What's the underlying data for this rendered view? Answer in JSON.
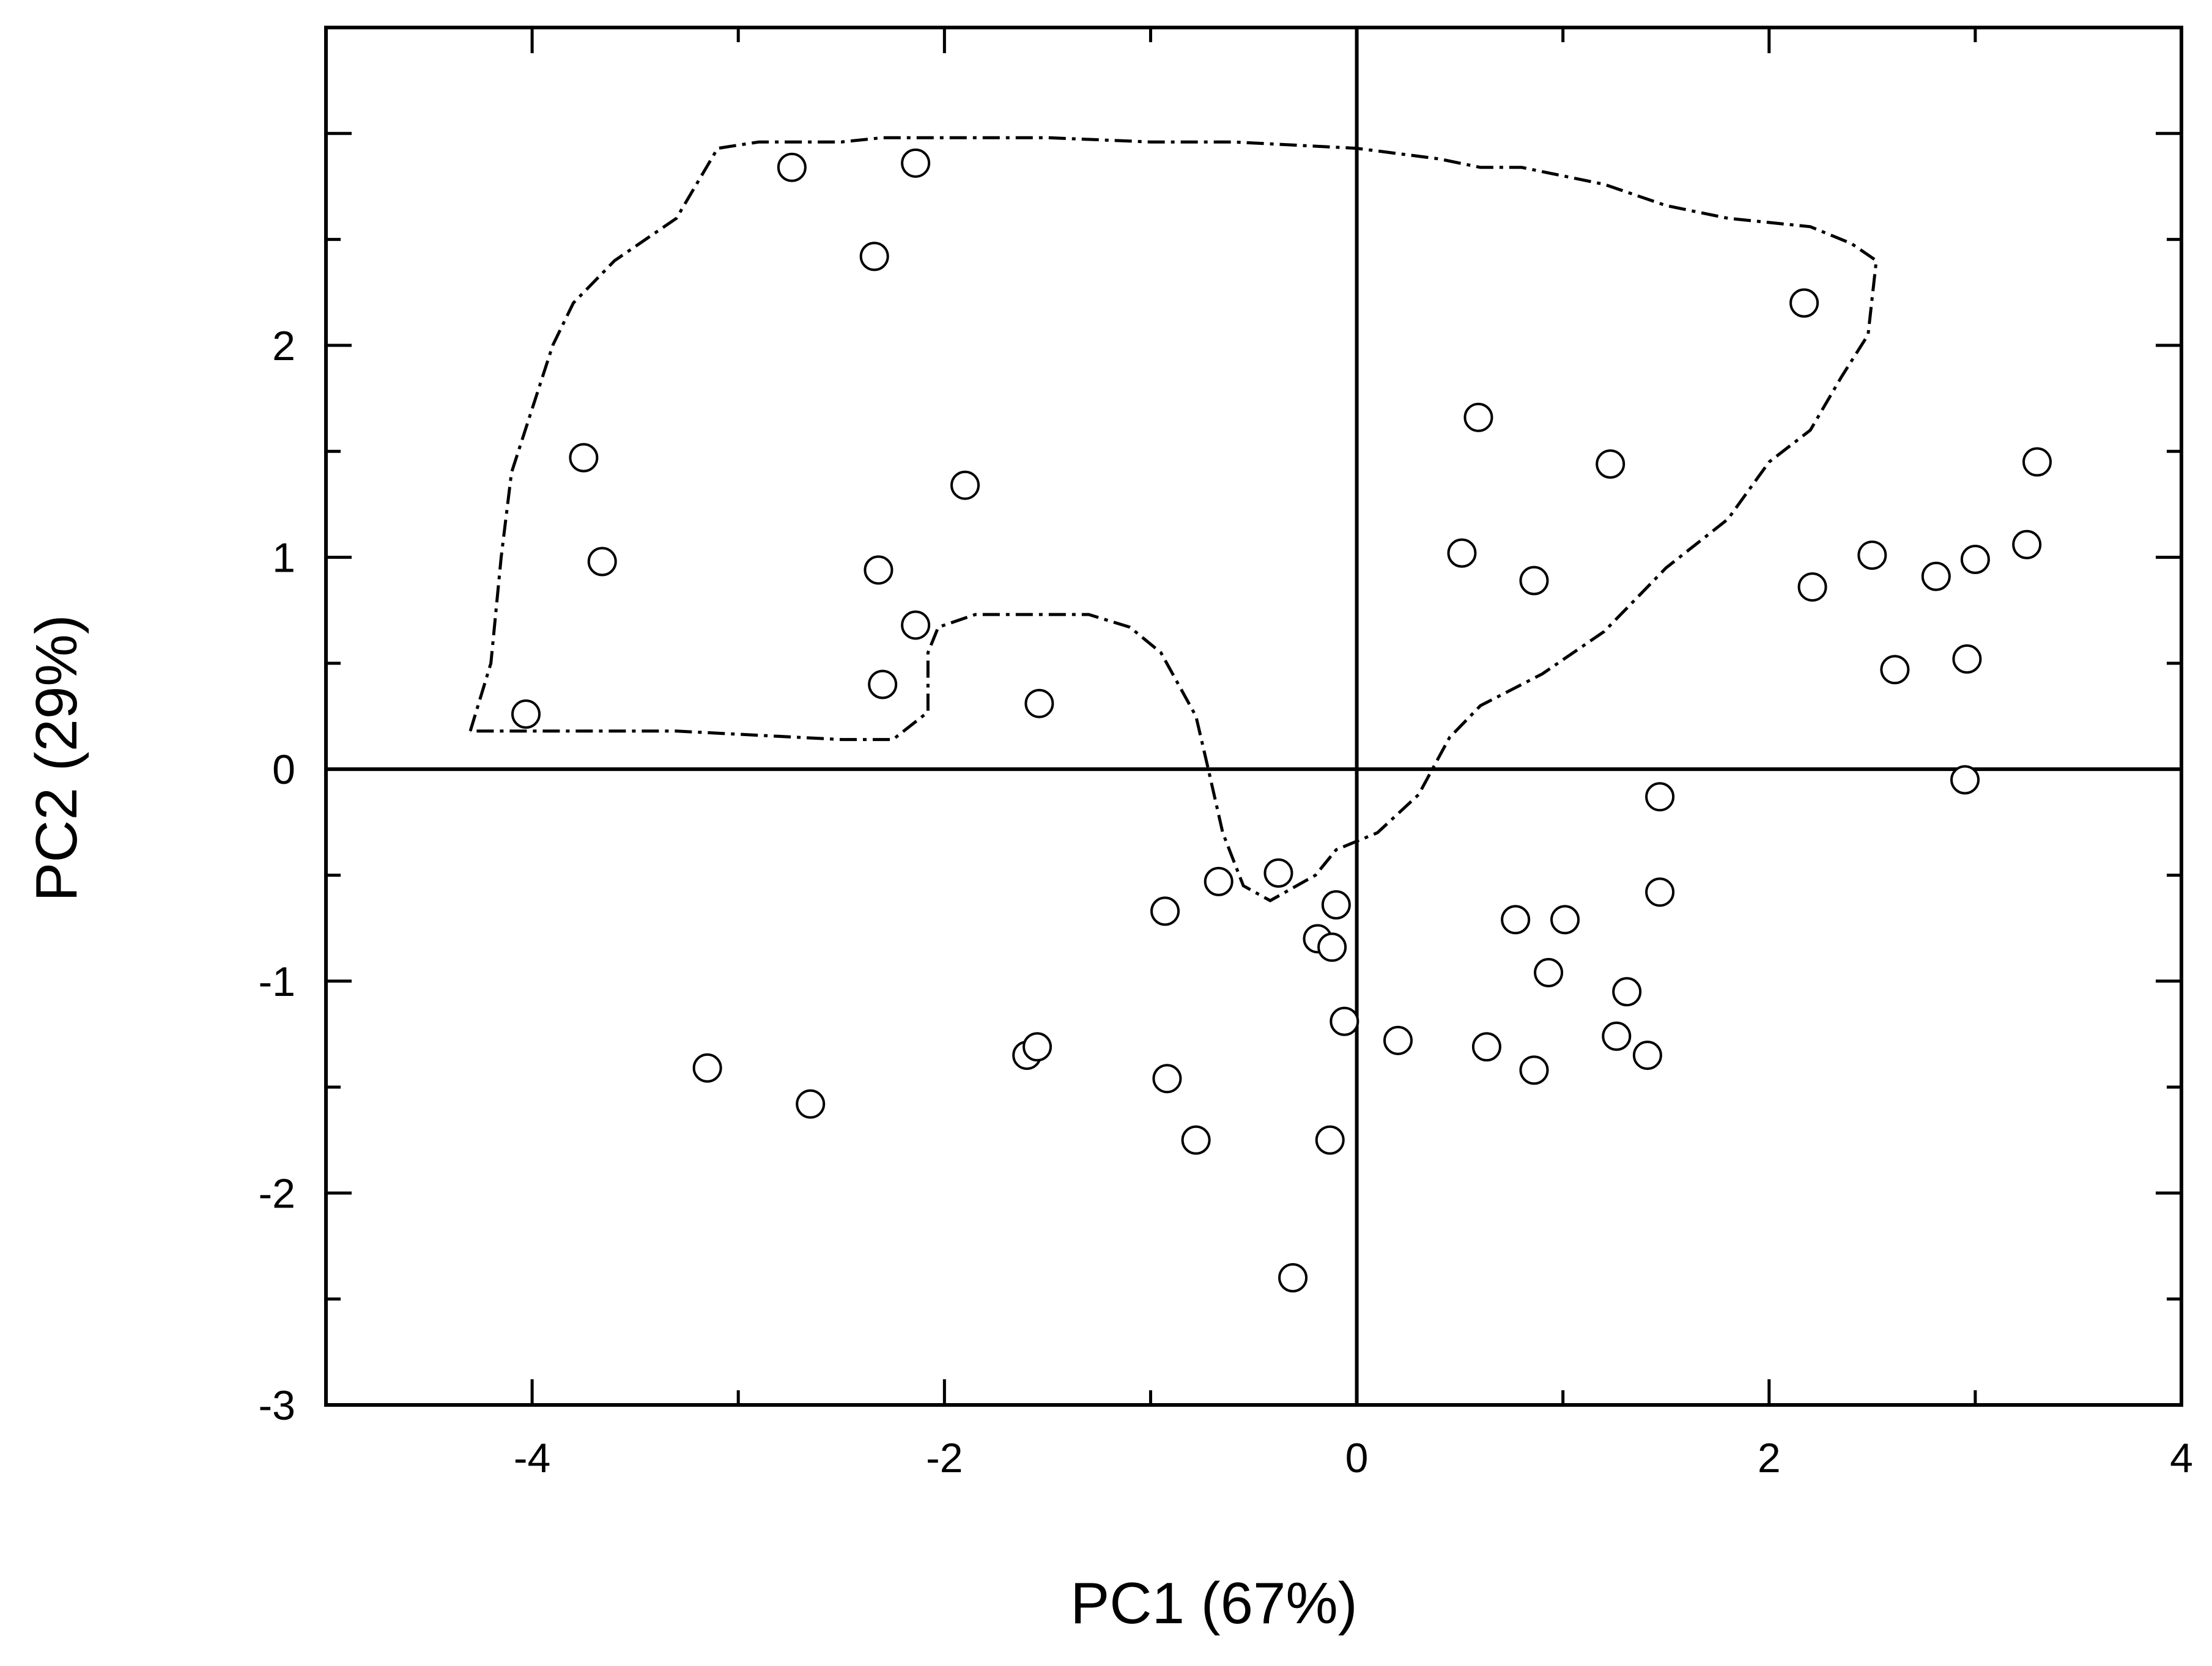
{
  "chart_data": {
    "type": "scatter",
    "xlabel": "PC1 (67%)",
    "ylabel": "PC2 (29%)",
    "xlim": [
      -5,
      4
    ],
    "ylim": [
      -3,
      3.5
    ],
    "x_ticks": [
      -4,
      -2,
      0,
      2,
      4
    ],
    "y_ticks": [
      -3,
      -2,
      -1,
      0,
      1,
      2
    ],
    "x_tick_labels": [
      "-4",
      "-2",
      "0",
      "2",
      "4"
    ],
    "y_tick_labels": [
      "-3",
      "-2",
      "-1",
      "0",
      "1",
      "2"
    ],
    "reference_lines": {
      "x": 0,
      "y": 0
    },
    "grid": false,
    "legend": "none",
    "marker": "open-circle",
    "points": [
      {
        "x": -2.74,
        "y": 2.84
      },
      {
        "x": -2.14,
        "y": 2.86
      },
      {
        "x": -2.34,
        "y": 2.42
      },
      {
        "x": -3.75,
        "y": 1.47
      },
      {
        "x": -3.66,
        "y": 0.98
      },
      {
        "x": -1.9,
        "y": 1.34
      },
      {
        "x": -2.32,
        "y": 0.94
      },
      {
        "x": -2.14,
        "y": 0.68
      },
      {
        "x": -2.3,
        "y": 0.4
      },
      {
        "x": -4.03,
        "y": 0.26
      },
      {
        "x": -1.54,
        "y": 0.31
      },
      {
        "x": 0.59,
        "y": 1.66
      },
      {
        "x": 1.23,
        "y": 1.44
      },
      {
        "x": 0.51,
        "y": 1.02
      },
      {
        "x": 0.86,
        "y": 0.89
      },
      {
        "x": 2.17,
        "y": 2.2
      },
      {
        "x": 3.3,
        "y": 1.45
      },
      {
        "x": 3.25,
        "y": 1.06
      },
      {
        "x": 2.5,
        "y": 1.01
      },
      {
        "x": 3.0,
        "y": 0.99
      },
      {
        "x": 2.81,
        "y": 0.91
      },
      {
        "x": 2.21,
        "y": 0.86
      },
      {
        "x": 2.61,
        "y": 0.47
      },
      {
        "x": 2.96,
        "y": 0.52
      },
      {
        "x": 2.95,
        "y": -0.05
      },
      {
        "x": 1.47,
        "y": -0.13
      },
      {
        "x": 1.47,
        "y": -0.58
      },
      {
        "x": -0.67,
        "y": -0.53
      },
      {
        "x": -0.38,
        "y": -0.49
      },
      {
        "x": -0.93,
        "y": -0.67
      },
      {
        "x": -0.1,
        "y": -0.64
      },
      {
        "x": -0.19,
        "y": -0.8
      },
      {
        "x": -0.12,
        "y": -0.84
      },
      {
        "x": 0.77,
        "y": -0.71
      },
      {
        "x": 1.01,
        "y": -0.71
      },
      {
        "x": 0.93,
        "y": -0.96
      },
      {
        "x": 1.31,
        "y": -1.05
      },
      {
        "x": -0.06,
        "y": -1.19
      },
      {
        "x": 0.2,
        "y": -1.28
      },
      {
        "x": 0.63,
        "y": -1.31
      },
      {
        "x": 1.26,
        "y": -1.26
      },
      {
        "x": 1.41,
        "y": -1.35
      },
      {
        "x": 0.86,
        "y": -1.42
      },
      {
        "x": -1.6,
        "y": -1.35
      },
      {
        "x": -1.55,
        "y": -1.31
      },
      {
        "x": -3.15,
        "y": -1.41
      },
      {
        "x": -2.65,
        "y": -1.58
      },
      {
        "x": -0.92,
        "y": -1.46
      },
      {
        "x": -0.78,
        "y": -1.75
      },
      {
        "x": -0.13,
        "y": -1.75
      },
      {
        "x": -0.31,
        "y": -2.4
      }
    ],
    "enclosing_region": [
      {
        "x": -4.3,
        "y": 0.18
      },
      {
        "x": -4.2,
        "y": 0.5
      },
      {
        "x": -4.15,
        "y": 1.0
      },
      {
        "x": -4.1,
        "y": 1.4
      },
      {
        "x": -4.0,
        "y": 1.7
      },
      {
        "x": -3.9,
        "y": 2.0
      },
      {
        "x": -3.8,
        "y": 2.2
      },
      {
        "x": -3.6,
        "y": 2.4
      },
      {
        "x": -3.3,
        "y": 2.6
      },
      {
        "x": -3.1,
        "y": 2.93
      },
      {
        "x": -2.9,
        "y": 2.96
      },
      {
        "x": -2.5,
        "y": 2.96
      },
      {
        "x": -2.3,
        "y": 2.98
      },
      {
        "x": -1.5,
        "y": 2.98
      },
      {
        "x": -1.0,
        "y": 2.96
      },
      {
        "x": -0.6,
        "y": 2.96
      },
      {
        "x": 0.0,
        "y": 2.93
      },
      {
        "x": 0.4,
        "y": 2.88
      },
      {
        "x": 0.6,
        "y": 2.84
      },
      {
        "x": 0.8,
        "y": 2.84
      },
      {
        "x": 1.2,
        "y": 2.76
      },
      {
        "x": 1.5,
        "y": 2.66
      },
      {
        "x": 1.8,
        "y": 2.6
      },
      {
        "x": 2.2,
        "y": 2.56
      },
      {
        "x": 2.4,
        "y": 2.48
      },
      {
        "x": 2.52,
        "y": 2.4
      },
      {
        "x": 2.48,
        "y": 2.05
      },
      {
        "x": 2.35,
        "y": 1.85
      },
      {
        "x": 2.2,
        "y": 1.6
      },
      {
        "x": 2.0,
        "y": 1.45
      },
      {
        "x": 1.8,
        "y": 1.18
      },
      {
        "x": 1.5,
        "y": 0.95
      },
      {
        "x": 1.2,
        "y": 0.65
      },
      {
        "x": 0.9,
        "y": 0.45
      },
      {
        "x": 0.6,
        "y": 0.3
      },
      {
        "x": 0.45,
        "y": 0.15
      },
      {
        "x": 0.3,
        "y": -0.12
      },
      {
        "x": 0.1,
        "y": -0.3
      },
      {
        "x": -0.1,
        "y": -0.38
      },
      {
        "x": -0.2,
        "y": -0.5
      },
      {
        "x": -0.42,
        "y": -0.62
      },
      {
        "x": -0.55,
        "y": -0.55
      },
      {
        "x": -0.65,
        "y": -0.3
      },
      {
        "x": -0.72,
        "y": 0.0
      },
      {
        "x": -0.78,
        "y": 0.25
      },
      {
        "x": -0.95,
        "y": 0.55
      },
      {
        "x": -1.1,
        "y": 0.67
      },
      {
        "x": -1.3,
        "y": 0.73
      },
      {
        "x": -1.85,
        "y": 0.73
      },
      {
        "x": -2.03,
        "y": 0.67
      },
      {
        "x": -2.08,
        "y": 0.55
      },
      {
        "x": -2.08,
        "y": 0.27
      },
      {
        "x": -2.25,
        "y": 0.14
      },
      {
        "x": -2.5,
        "y": 0.14
      },
      {
        "x": -2.9,
        "y": 0.16
      },
      {
        "x": -3.3,
        "y": 0.18
      },
      {
        "x": -4.3,
        "y": 0.18
      }
    ]
  }
}
